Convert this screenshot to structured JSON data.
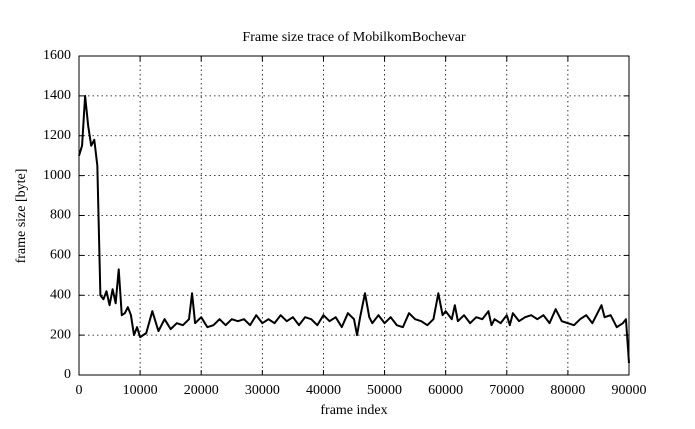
{
  "chart_data": {
    "type": "line",
    "title": "Frame size trace of MobilkomBochevar",
    "x_label": "frame index",
    "y_label": "frame size [byte]",
    "color": "#000000",
    "grid": true,
    "x": [
      0,
      500,
      1000,
      1500,
      2000,
      2500,
      3000,
      3500,
      4000,
      4500,
      5000,
      5500,
      6000,
      6500,
      7000,
      7500,
      8000,
      8500,
      9000,
      9500,
      10000,
      11000,
      12000,
      13000,
      14000,
      15000,
      16000,
      17000,
      18000,
      18500,
      19000,
      20000,
      21000,
      22000,
      23000,
      24000,
      25000,
      26000,
      27000,
      28000,
      29000,
      30000,
      31000,
      32000,
      33000,
      34000,
      35000,
      36000,
      37000,
      38000,
      39000,
      40000,
      41000,
      42000,
      43000,
      44000,
      45000,
      45500,
      46000,
      46800,
      47500,
      48000,
      49000,
      50000,
      51000,
      52000,
      53000,
      54000,
      55000,
      56000,
      57000,
      58000,
      58800,
      59500,
      60000,
      61000,
      61500,
      62000,
      63000,
      64000,
      65000,
      66000,
      67000,
      67500,
      68000,
      69000,
      70000,
      70500,
      71000,
      72000,
      73000,
      74000,
      75000,
      76000,
      77000,
      78000,
      79000,
      80000,
      81000,
      82000,
      83000,
      84000,
      85000,
      85500,
      86000,
      87000,
      88000,
      89000,
      89500,
      90000
    ],
    "values": [
      1100,
      1150,
      1400,
      1250,
      1150,
      1180,
      1050,
      400,
      380,
      420,
      350,
      430,
      360,
      530,
      300,
      310,
      340,
      300,
      200,
      240,
      190,
      210,
      320,
      220,
      280,
      230,
      260,
      250,
      280,
      410,
      260,
      290,
      240,
      250,
      280,
      250,
      280,
      270,
      280,
      250,
      300,
      260,
      280,
      260,
      300,
      270,
      290,
      250,
      290,
      280,
      250,
      300,
      270,
      290,
      240,
      310,
      280,
      200,
      290,
      410,
      290,
      260,
      300,
      260,
      290,
      250,
      240,
      310,
      280,
      270,
      250,
      280,
      410,
      300,
      320,
      280,
      350,
      270,
      300,
      260,
      290,
      280,
      320,
      250,
      280,
      260,
      300,
      250,
      310,
      270,
      290,
      300,
      280,
      300,
      260,
      330,
      270,
      260,
      250,
      280,
      300,
      260,
      320,
      350,
      290,
      300,
      240,
      260,
      280,
      60
    ],
    "xlim": [
      0,
      90000
    ],
    "ylim": [
      0,
      1600
    ],
    "xticks": [
      0,
      10000,
      20000,
      30000,
      40000,
      50000,
      60000,
      70000,
      80000,
      90000
    ],
    "yticks": [
      0,
      200,
      400,
      600,
      800,
      1000,
      1200,
      1400,
      1600
    ]
  }
}
